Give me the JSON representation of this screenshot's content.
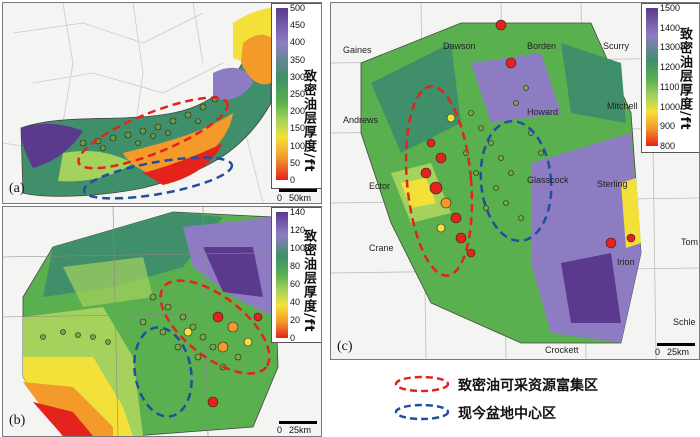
{
  "panels": {
    "a": {
      "label": "(a)",
      "scale_zero": "0",
      "scale_text": "50km"
    },
    "b": {
      "label": "(b)",
      "scale_zero": "0",
      "scale_text": "25km"
    },
    "c": {
      "label": "(c)",
      "scale_zero": "0",
      "scale_text": "25km"
    }
  },
  "colorbars": {
    "a": {
      "ticks": [
        "500",
        "450",
        "400",
        "350",
        "300",
        "250",
        "200",
        "150",
        "100",
        "50",
        "0"
      ],
      "title": "致密油层厚度/ft"
    },
    "b": {
      "ticks": [
        "140",
        "120",
        "100",
        "80",
        "60",
        "40",
        "20",
        "0"
      ],
      "title": "致密油层厚度/ft"
    },
    "c": {
      "ticks": [
        "1500",
        "1400",
        "1300",
        "1200",
        "1100",
        "1000",
        "900",
        "800"
      ],
      "title": "致密油层厚度/ft"
    }
  },
  "colors": {
    "purple": "#5b3a8e",
    "violet": "#8e7cc3",
    "teal": "#3f8f6b",
    "green": "#5ab04e",
    "lightgreen": "#a5d25c",
    "yellow": "#f3e13a",
    "orange": "#f49a2b",
    "red": "#e3231c",
    "sweetspot_outline": "#e3231c",
    "basin_center_outline": "#1f4fa0"
  },
  "counties": [
    "Gaines",
    "Dawson",
    "Borden",
    "Scurry",
    "Mitchell",
    "Andrews",
    "Howard",
    "Ector",
    "Glasscock",
    "Sterling",
    "Crane",
    "Irion",
    "Tom",
    "Schle",
    "Crockett"
  ],
  "legend": {
    "sweet_spot": "致密油可采资源富集区",
    "basin_center": "现今盆地中心区"
  }
}
